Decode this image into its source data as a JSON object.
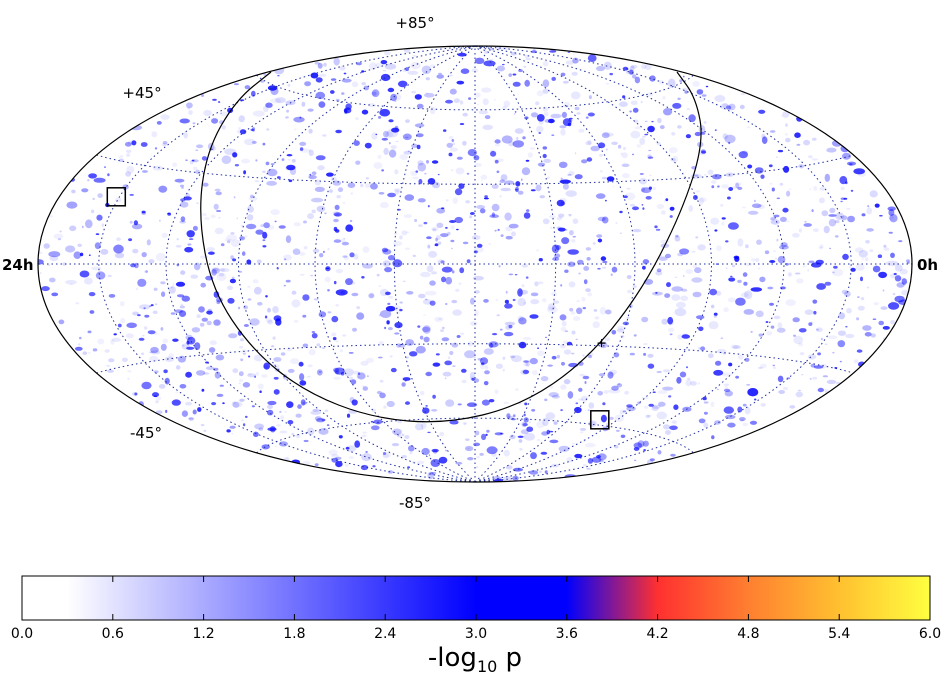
{
  "map": {
    "projection": "hammer-aitoff",
    "dec_labels": {
      "top": "+85°",
      "upper": "+45°",
      "lower": "-45°",
      "bottom": "-85°"
    },
    "ra_labels": {
      "left": "24h",
      "right": "0h"
    },
    "hotspot_color": "#0000ff",
    "grid_color": "#1f2f9f",
    "markers": [
      {
        "type": "box",
        "ra_hours": 1.9,
        "dec_deg": 20
      },
      {
        "type": "box",
        "ra_hours": 17.3,
        "dec_deg": -58
      },
      {
        "type": "cross",
        "ra_hours": 15.5,
        "dec_deg": -29
      }
    ]
  },
  "colorbar": {
    "ticks": [
      "0.0",
      "0.6",
      "1.2",
      "1.8",
      "2.4",
      "3.0",
      "3.6",
      "4.2",
      "4.8",
      "5.4",
      "6.0"
    ],
    "range": [
      0.0,
      6.0
    ],
    "title_main": "-log",
    "title_sub": "10",
    "title_tail": " p",
    "stops": [
      {
        "value": 0.0,
        "color": "#ffffff"
      },
      {
        "value": 0.3,
        "color": "#ffffff"
      },
      {
        "value": 3.0,
        "color": "#0000ff"
      },
      {
        "value": 3.6,
        "color": "#0000ff"
      },
      {
        "value": 4.2,
        "color": "#ff3030"
      },
      {
        "value": 4.8,
        "color": "#ff7f30"
      },
      {
        "value": 5.4,
        "color": "#ffc030"
      },
      {
        "value": 6.0,
        "color": "#ffff40"
      }
    ]
  }
}
